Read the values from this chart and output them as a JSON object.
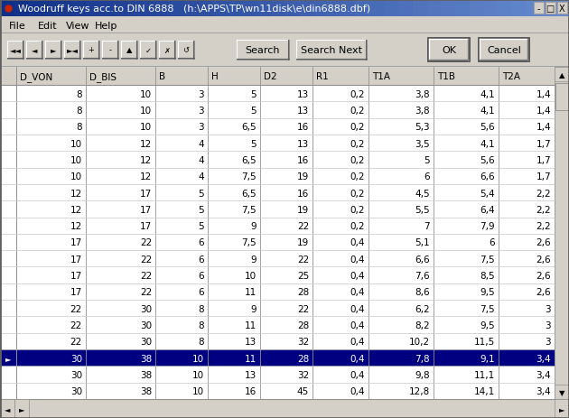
{
  "title": "Woodruff keys acc.to DIN 6888   (h:\\APPS\\TP\\wn11disk\\e\\din6888.dbf)",
  "columns": [
    "D_VON",
    "D_BIS",
    "B",
    "H",
    "D2",
    "R1",
    "T1A",
    "T1B",
    "T2A"
  ],
  "rows": [
    [
      "8",
      "10",
      "3",
      "5",
      "13",
      "0,2",
      "3,8",
      "4,1",
      "1,4"
    ],
    [
      "8",
      "10",
      "3",
      "5",
      "13",
      "0,2",
      "3,8",
      "4,1",
      "1,4"
    ],
    [
      "8",
      "10",
      "3",
      "6,5",
      "16",
      "0,2",
      "5,3",
      "5,6",
      "1,4"
    ],
    [
      "10",
      "12",
      "4",
      "5",
      "13",
      "0,2",
      "3,5",
      "4,1",
      "1,7"
    ],
    [
      "10",
      "12",
      "4",
      "6,5",
      "16",
      "0,2",
      "5",
      "5,6",
      "1,7"
    ],
    [
      "10",
      "12",
      "4",
      "7,5",
      "19",
      "0,2",
      "6",
      "6,6",
      "1,7"
    ],
    [
      "12",
      "17",
      "5",
      "6,5",
      "16",
      "0,2",
      "4,5",
      "5,4",
      "2,2"
    ],
    [
      "12",
      "17",
      "5",
      "7,5",
      "19",
      "0,2",
      "5,5",
      "6,4",
      "2,2"
    ],
    [
      "12",
      "17",
      "5",
      "9",
      "22",
      "0,2",
      "7",
      "7,9",
      "2,2"
    ],
    [
      "17",
      "22",
      "6",
      "7,5",
      "19",
      "0,4",
      "5,1",
      "6",
      "2,6"
    ],
    [
      "17",
      "22",
      "6",
      "9",
      "22",
      "0,4",
      "6,6",
      "7,5",
      "2,6"
    ],
    [
      "17",
      "22",
      "6",
      "10",
      "25",
      "0,4",
      "7,6",
      "8,5",
      "2,6"
    ],
    [
      "17",
      "22",
      "6",
      "11",
      "28",
      "0,4",
      "8,6",
      "9,5",
      "2,6"
    ],
    [
      "22",
      "30",
      "8",
      "9",
      "22",
      "0,4",
      "6,2",
      "7,5",
      "3"
    ],
    [
      "22",
      "30",
      "8",
      "11",
      "28",
      "0,4",
      "8,2",
      "9,5",
      "3"
    ],
    [
      "22",
      "30",
      "8",
      "13",
      "32",
      "0,4",
      "10,2",
      "11,5",
      "3"
    ],
    [
      "30",
      "38",
      "10",
      "11",
      "28",
      "0,4",
      "7,8",
      "9,1",
      "3,4"
    ],
    [
      "30",
      "38",
      "10",
      "13",
      "32",
      "0,4",
      "9,8",
      "11,1",
      "3,4"
    ],
    [
      "30",
      "38",
      "10",
      "16",
      "45",
      "0,4",
      "12,8",
      "14,1",
      "3,4"
    ]
  ],
  "selected_row": 16,
  "bg_color": "#d4d0c8",
  "table_bg": "#ffffff",
  "selected_bg": "#000080",
  "selected_fg": "#ffffff",
  "title_bar_bg_left": "#1a3a8c",
  "title_bar_bg_right": "#6a8fd4",
  "title_bar_fg": "#ffffff",
  "nav_btns": [
    "◄◄",
    "◄",
    "►",
    "►◄",
    "+",
    "-",
    "▲",
    "✓",
    "✗",
    "↺"
  ],
  "menu_items": [
    "File",
    "Edit",
    "View",
    "Help"
  ],
  "figw": 6.3,
  "figh": 4.64,
  "dpi": 100
}
